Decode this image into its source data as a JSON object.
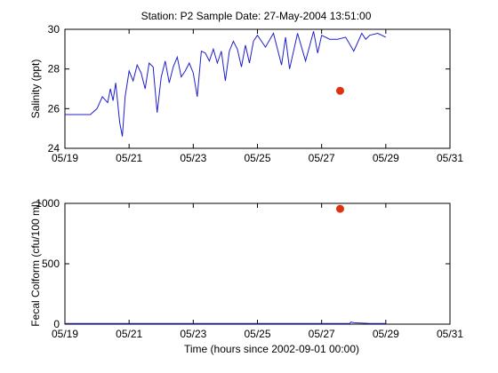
{
  "figure_title": "Station: P2  Sample Date: 27-May-2004 13:51:00",
  "colors": {
    "line": "#1f1fcc",
    "marker": "#dd3311",
    "axis": "#000000",
    "background": "#ffffff"
  },
  "chart_data": [
    {
      "type": "line",
      "title": "Station: P2  Sample Date: 27-May-2004 13:51:00",
      "xlabel": "",
      "ylabel": "Salinity (ppt)",
      "xlim": [
        "05/19",
        "05/31"
      ],
      "ylim": [
        24,
        30
      ],
      "xtick_labels": [
        "05/19",
        "05/21",
        "05/23",
        "05/25",
        "05/27",
        "05/29",
        "05/31"
      ],
      "ytick_values": [
        24,
        26,
        28,
        30
      ],
      "grid": false,
      "series": [
        {
          "style": "line",
          "x": [
            "05/19 00:00",
            "05/19 12:00",
            "05/19 19:00",
            "05/20 00:00",
            "05/20 04:00",
            "05/20 08:00",
            "05/20 10:00",
            "05/20 12:00",
            "05/20 14:00",
            "05/20 17:00",
            "05/20 19:00",
            "05/20 21:00",
            "05/21 00:00",
            "05/21 03:00",
            "05/21 06:00",
            "05/21 09:00",
            "05/21 12:00",
            "05/21 15:00",
            "05/21 18:00",
            "05/21 21:00",
            "05/22 00:00",
            "05/22 03:00",
            "05/22 06:00",
            "05/22 09:00",
            "05/22 12:00",
            "05/22 15:00",
            "05/22 18:00",
            "05/22 21:00",
            "05/23 00:00",
            "05/23 03:00",
            "05/23 06:00",
            "05/23 09:00",
            "05/23 12:00",
            "05/23 15:00",
            "05/23 18:00",
            "05/23 21:00",
            "05/24 00:00",
            "05/24 03:00",
            "05/24 06:00",
            "05/24 09:00",
            "05/24 12:00",
            "05/24 15:00",
            "05/24 18:00",
            "05/24 21:00",
            "05/25 00:00",
            "05/25 06:00",
            "05/25 12:00",
            "05/25 18:00",
            "05/25 21:00",
            "05/26 00:00",
            "05/26 06:00",
            "05/26 12:00",
            "05/26 18:00",
            "05/26 21:00",
            "05/27 00:00",
            "05/27 06:00",
            "05/27 12:00",
            "05/27 18:00",
            "05/28 00:00",
            "05/28 06:00",
            "05/28 09:00",
            "05/28 12:00",
            "05/28 18:00",
            "05/29 00:00"
          ],
          "y": [
            25.7,
            25.7,
            25.7,
            26.0,
            26.6,
            26.3,
            27.0,
            26.4,
            27.3,
            25.3,
            24.6,
            26.6,
            27.9,
            27.4,
            28.2,
            27.8,
            27.0,
            28.3,
            28.1,
            25.8,
            27.6,
            28.4,
            27.3,
            28.1,
            28.6,
            27.6,
            27.9,
            28.3,
            27.8,
            26.6,
            28.9,
            28.8,
            28.4,
            29.0,
            28.3,
            28.9,
            27.4,
            28.9,
            29.4,
            29.0,
            28.1,
            29.2,
            28.3,
            29.4,
            29.7,
            29.1,
            29.8,
            28.2,
            29.6,
            28.0,
            29.8,
            28.4,
            29.9,
            28.8,
            29.7,
            29.5,
            29.5,
            29.6,
            28.9,
            29.8,
            29.5,
            29.7,
            29.8,
            29.6
          ]
        },
        {
          "style": "marker",
          "x": [
            "05/27 13:51"
          ],
          "y": [
            26.9
          ]
        }
      ]
    },
    {
      "type": "line",
      "title": "",
      "xlabel": "Time (hours since 2002-09-01 00:00)",
      "ylabel": "Fecal Colform (cfu/100 ml)",
      "xlim": [
        "05/19",
        "05/31"
      ],
      "ylim": [
        0,
        1000
      ],
      "xtick_labels": [
        "05/19",
        "05/21",
        "05/23",
        "05/25",
        "05/27",
        "05/29",
        "05/31"
      ],
      "ytick_values": [
        0,
        500,
        1000
      ],
      "grid": false,
      "series": [
        {
          "style": "line",
          "x": [
            "05/19 00:00",
            "05/23 00:00",
            "05/27 00:00",
            "05/27 21:00",
            "05/27 22:00",
            "05/28 00:00",
            "05/28 12:00",
            "05/29 00:00"
          ],
          "y": [
            5,
            5,
            5,
            5,
            18,
            12,
            6,
            5
          ]
        },
        {
          "style": "marker",
          "x": [
            "05/27 13:51"
          ],
          "y": [
            955
          ]
        }
      ]
    }
  ]
}
